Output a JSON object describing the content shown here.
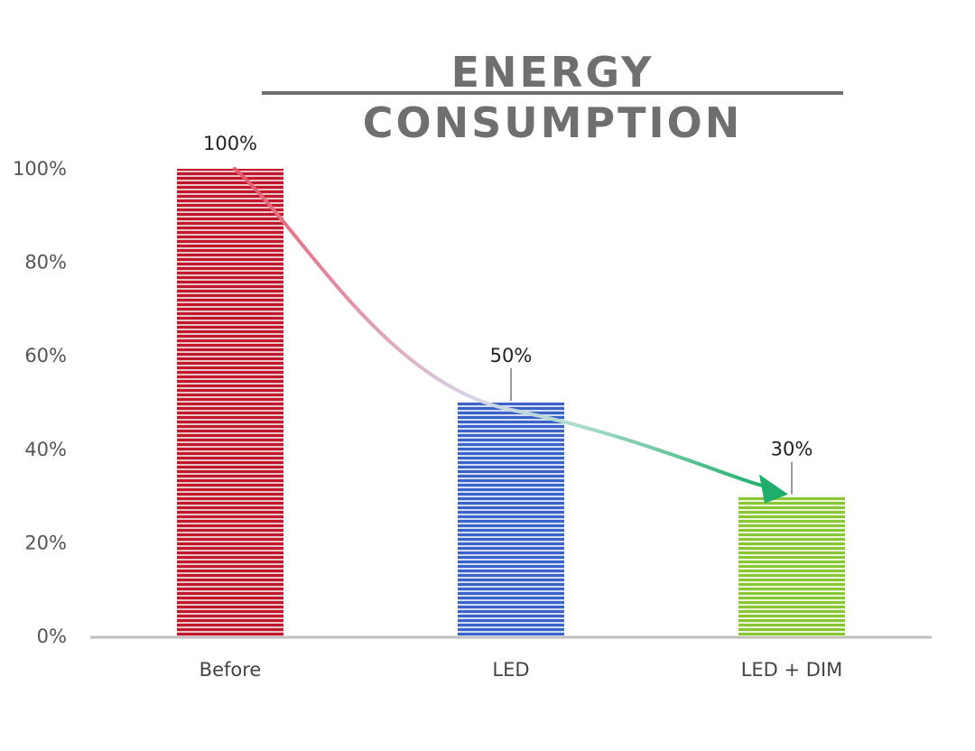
{
  "chart_data": {
    "type": "bar",
    "title": "ENERGY CONSUMPTION",
    "categories": [
      "Before",
      "LED",
      "LED + DIM"
    ],
    "values": [
      100,
      50,
      30
    ],
    "data_labels": [
      "100%",
      "50%",
      "30%"
    ],
    "ylim": [
      0,
      100
    ],
    "yticks": [
      0,
      20,
      40,
      60,
      80,
      100
    ],
    "ytick_labels": [
      "0%",
      "20%",
      "40%",
      "60%",
      "80%",
      "100%"
    ],
    "xlabel": "",
    "ylabel": "",
    "grid": false,
    "legend": "none",
    "bar_colors": [
      "#c0172b",
      "#3a63c9",
      "#86c733"
    ],
    "arrow": {
      "from": "Before",
      "to": "LED + DIM",
      "color_start": "#e8586a",
      "color_end": "#1fae6a"
    }
  }
}
